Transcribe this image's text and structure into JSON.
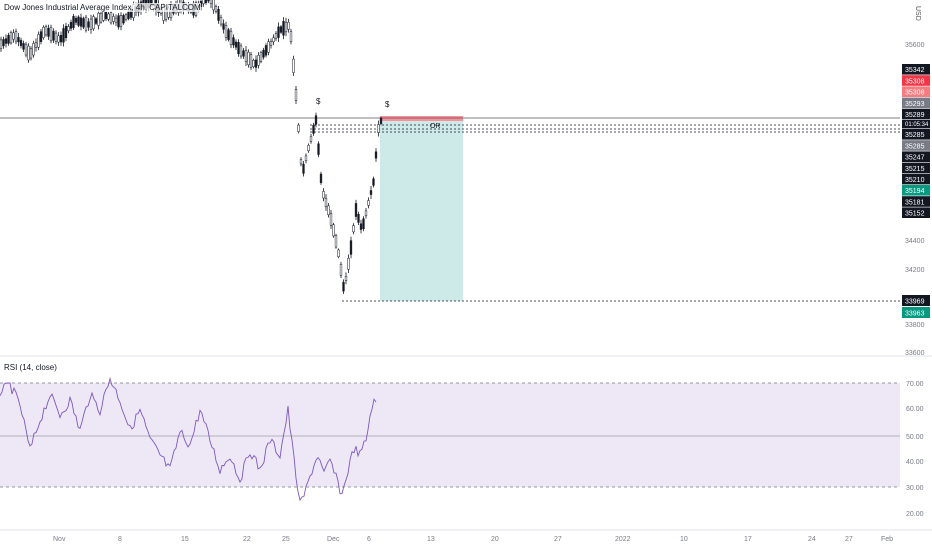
{
  "chart": {
    "title": "Dow Jones Industrial Average Index, 4h, CAPITALCOM",
    "currency": "USD",
    "price_axis_ticks": [
      "35600",
      "34400",
      "34200",
      "33800",
      "33600"
    ],
    "price_tags": [
      {
        "text": "35342",
        "color": "#131722"
      },
      {
        "text": "35308",
        "color": "#f23645"
      },
      {
        "text": "35308",
        "color": "#f77c80"
      },
      {
        "text": "35293",
        "color": "#787b86"
      },
      {
        "text": "35289",
        "color": "#131722"
      },
      {
        "text": "01:05:34",
        "color": "#131722"
      },
      {
        "text": "35285",
        "color": "#131722"
      },
      {
        "text": "35285",
        "color": "#787b86"
      },
      {
        "text": "35247",
        "color": "#131722"
      },
      {
        "text": "35215",
        "color": "#131722"
      },
      {
        "text": "35210",
        "color": "#131722"
      },
      {
        "text": "35194",
        "color": "#089981"
      },
      {
        "text": "35181",
        "color": "#131722"
      },
      {
        "text": "35152",
        "color": "#131722"
      }
    ],
    "bottom_price_tags": [
      {
        "text": "33969",
        "color": "#131722"
      },
      {
        "text": "33963",
        "color": "#089981"
      }
    ],
    "markers": [
      "$",
      "$"
    ],
    "position_label": "OR",
    "colors": {
      "candle": "#131722",
      "profit_zone": "#b2dfdb",
      "stop_zone": "#f23645",
      "rsi_line": "#7e57c2",
      "rsi_band": "#ede7f6"
    }
  },
  "rsi": {
    "title": "RSI (14, close)",
    "axis_ticks": [
      "70.00",
      "60.00",
      "50.00",
      "40.00",
      "30.00",
      "20.00"
    ]
  },
  "time_axis": {
    "labels": [
      "Nov",
      "8",
      "15",
      "22",
      "25",
      "Dec",
      "6",
      "13",
      "20",
      "27",
      "2022",
      "10",
      "17",
      "24",
      "27",
      "Feb"
    ]
  }
}
